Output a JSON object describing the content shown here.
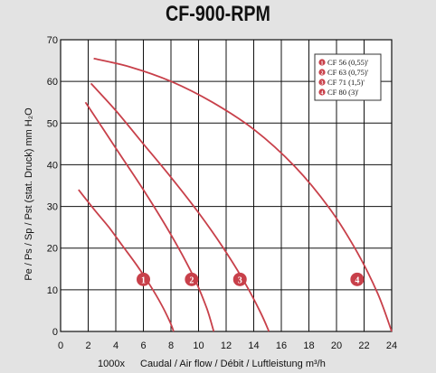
{
  "chart_data": {
    "type": "line",
    "title": "CF-900-RPM",
    "xlabel_prefix": "1000x",
    "xlabel": "Caudal / Air flow / Débit / Luftleistung m³/h",
    "ylabel": "Pe / Ps / Sp / Pst (stat. Druck) mm H₂O",
    "xlim": [
      0,
      24
    ],
    "ylim": [
      0,
      70
    ],
    "x_ticks": [
      "0",
      "2",
      "4",
      "6",
      "8",
      "10",
      "12",
      "14",
      "16",
      "18",
      "20",
      "22",
      "24"
    ],
    "y_ticks": [
      "0",
      "10",
      "20",
      "30",
      "40",
      "50",
      "60",
      "70"
    ],
    "grid": true,
    "curve_color": "#c8404a",
    "series": [
      {
        "name": "CF 56 (0,55)'",
        "marker": "1",
        "marker_pos": [
          6.0,
          12.5
        ],
        "x": [
          1.3,
          2.5,
          3.5,
          4.5,
          5.5,
          6.5,
          7.3,
          7.9,
          8.2
        ],
        "y": [
          34,
          29,
          25,
          20.5,
          16,
          11,
          6.5,
          2.5,
          0
        ]
      },
      {
        "name": "CF 63 (0,75)'",
        "marker": "2",
        "marker_pos": [
          9.5,
          12.5
        ],
        "x": [
          1.8,
          3,
          4.5,
          6,
          7.5,
          8.8,
          9.8,
          10.6,
          11.1
        ],
        "y": [
          55,
          49,
          41.5,
          34,
          26,
          18.5,
          12,
          5.5,
          0
        ]
      },
      {
        "name": "CF 71 (1,5)'",
        "marker": "3",
        "marker_pos": [
          13.0,
          12.5
        ],
        "x": [
          2.2,
          4,
          6,
          8,
          10,
          11.8,
          13.3,
          14.5,
          15.1
        ],
        "y": [
          59.5,
          53,
          45,
          37,
          28.5,
          20,
          12,
          4.5,
          0
        ]
      },
      {
        "name": "CF 80 (3)'",
        "marker": "4",
        "marker_pos": [
          21.5,
          12.5
        ],
        "x": [
          2.4,
          5,
          8,
          11,
          14,
          17,
          19.5,
          21.5,
          23,
          24
        ],
        "y": [
          65.5,
          63.5,
          60,
          55,
          48.5,
          39.5,
          29.5,
          19,
          9,
          0
        ]
      }
    ]
  }
}
